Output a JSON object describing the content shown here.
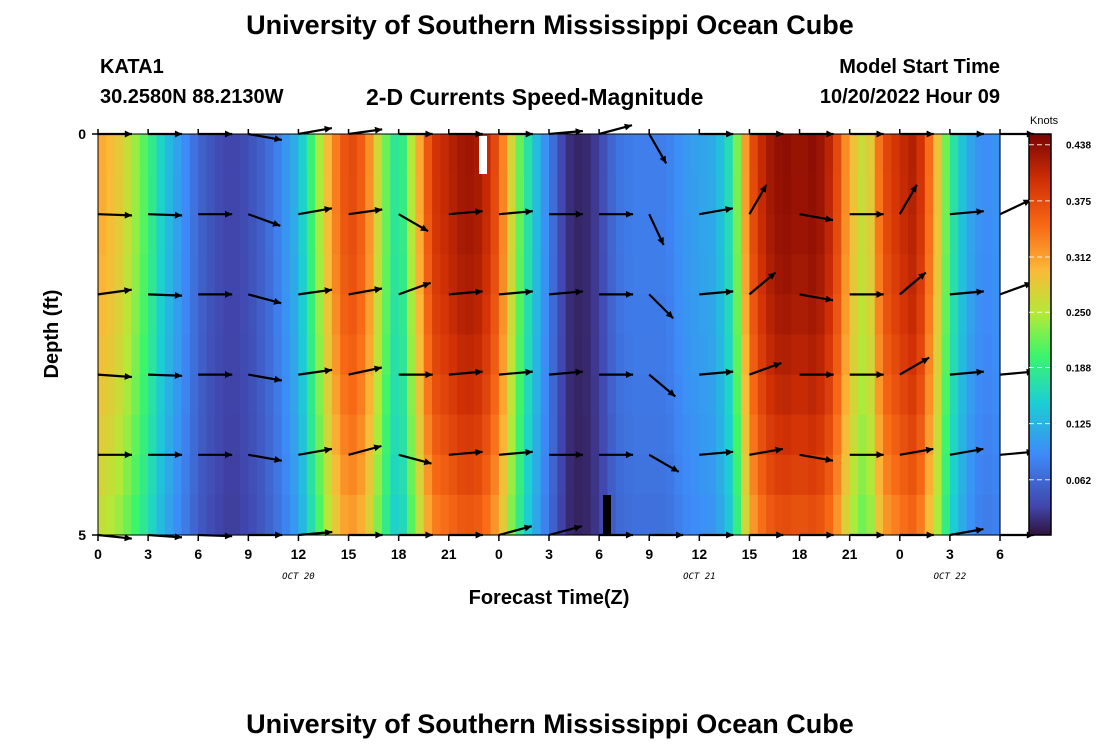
{
  "header": {
    "title": "University of Southern Mississippi Ocean Cube",
    "station_id": "KATA1",
    "coords": "30.2580N  88.2130W",
    "plot_title": "2-D Currents Speed-Magnitude",
    "model_label": "Model Start Time",
    "model_time": "10/20/2022 Hour 09"
  },
  "footer": {
    "title": "University of Southern Mississippi Ocean Cube"
  },
  "chart_data": {
    "type": "heatmap",
    "title": "2-D Currents Speed-Magnitude",
    "xlabel": "Forecast Time(Z)",
    "ylabel": "Depth (ft)",
    "xlim": [
      0,
      54
    ],
    "ylim": [
      0,
      5
    ],
    "x_ticks": [
      "0",
      "3",
      "6",
      "9",
      "12",
      "15",
      "18",
      "21",
      "0",
      "3",
      "6",
      "9",
      "12",
      "15",
      "18",
      "21",
      "0",
      "3",
      "6"
    ],
    "y_ticks": [
      "0",
      "5"
    ],
    "date_labels": [
      {
        "text": "OCT 20",
        "hour": 12
      },
      {
        "text": "OCT 21",
        "hour": 36
      },
      {
        "text": "OCT 22",
        "hour": 51
      }
    ],
    "colorbar": {
      "title": "Knots",
      "min": 0.0,
      "max": 0.45,
      "ticks": [
        "0.438",
        "0.375",
        "0.312",
        "0.250",
        "0.188",
        "0.125",
        "0.062"
      ],
      "tick_values": [
        0.438,
        0.375,
        0.312,
        0.25,
        0.188,
        0.125,
        0.062
      ]
    },
    "speed_profile": {
      "hours": [
        0,
        1,
        2,
        3,
        4,
        5,
        6,
        7,
        8,
        9,
        10,
        11,
        12,
        13,
        14,
        15,
        16,
        17,
        18,
        19,
        20,
        21,
        22,
        23,
        24,
        25,
        26,
        27,
        28,
        29,
        30,
        31,
        32,
        33,
        34,
        35,
        36,
        37,
        38,
        39,
        40,
        41,
        42,
        43,
        44,
        45,
        46,
        47,
        48,
        49,
        50,
        51,
        52,
        53,
        54
      ],
      "speed": [
        0.31,
        0.29,
        0.25,
        0.2,
        0.14,
        0.1,
        0.06,
        0.04,
        0.03,
        0.04,
        0.06,
        0.09,
        0.13,
        0.22,
        0.32,
        0.38,
        0.35,
        0.24,
        0.16,
        0.28,
        0.39,
        0.41,
        0.43,
        0.42,
        0.36,
        0.24,
        0.15,
        0.08,
        0.02,
        0.01,
        0.03,
        0.07,
        0.08,
        0.08,
        0.08,
        0.1,
        0.11,
        0.12,
        0.18,
        0.36,
        0.42,
        0.44,
        0.43,
        0.44,
        0.4,
        0.3,
        0.25,
        0.37,
        0.4,
        0.42,
        0.32,
        0.19,
        0.12,
        0.09,
        0.1
      ]
    },
    "bottom_speed_modifier": 0.85,
    "vectors": {
      "rows_depth": [
        0,
        1,
        2,
        3,
        4,
        5
      ],
      "cols_hour": [
        0,
        3,
        6,
        9,
        12,
        15,
        18,
        21,
        24,
        27,
        30,
        33,
        36,
        39,
        42,
        45,
        48,
        51,
        54
      ],
      "angle_deg": [
        [
          0,
          2,
          -8,
          4,
          0,
          6
        ],
        [
          0,
          2,
          2,
          2,
          0,
          4
        ],
        [
          0,
          0,
          0,
          0,
          0,
          2
        ],
        [
          10,
          20,
          15,
          10,
          10,
          0
        ],
        [
          -10,
          -10,
          -8,
          -8,
          -10,
          -5
        ],
        [
          -8,
          -8,
          -10,
          -12,
          -15,
          0
        ],
        [
          0,
          30,
          -20,
          0,
          15,
          0
        ],
        [
          0,
          -5,
          -5,
          -5,
          -5,
          0
        ],
        [
          0,
          -5,
          -5,
          -5,
          -5,
          -15
        ],
        [
          -5,
          0,
          -5,
          -5,
          0,
          -15
        ],
        [
          -15,
          0,
          0,
          0,
          0,
          0
        ],
        [
          60,
          65,
          45,
          40,
          30,
          0
        ],
        [
          0,
          -10,
          -5,
          -5,
          -5,
          0
        ],
        [
          0,
          -60,
          -40,
          -20,
          -10,
          0
        ],
        [
          0,
          10,
          10,
          0,
          10,
          0
        ],
        [
          0,
          0,
          0,
          0,
          0,
          0
        ],
        [
          0,
          -60,
          -40,
          -30,
          -10,
          0
        ],
        [
          0,
          -5,
          -5,
          -5,
          -10,
          -10
        ],
        [
          0,
          -25,
          -20,
          -5,
          -5,
          0
        ]
      ]
    }
  }
}
